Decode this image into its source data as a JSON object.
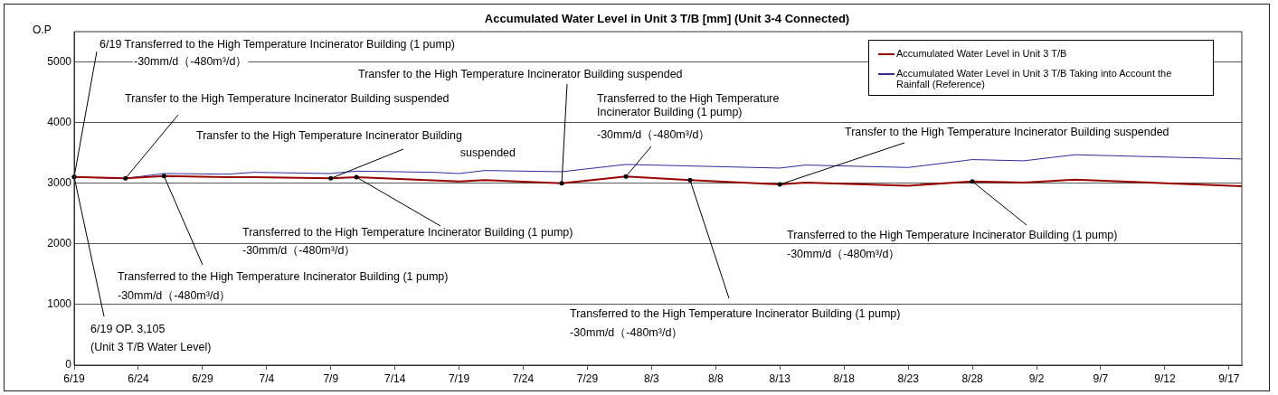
{
  "chart_data": {
    "type": "line",
    "title": "Accumulated Water Level in Unit 3 T/B [mm] (Unit 3-4 Connected)",
    "ylabel": "O.P",
    "xlim": [
      "--06-19",
      "--09-18"
    ],
    "xticks": [
      {
        "value": "--06-19",
        "label": "6/19"
      },
      {
        "value": "--06-24",
        "label": "6/24"
      },
      {
        "value": "--06-29",
        "label": "6/29"
      },
      {
        "value": "--07-04",
        "label": "7/4"
      },
      {
        "value": "--07-09",
        "label": "7/9"
      },
      {
        "value": "--07-14",
        "label": "7/14"
      },
      {
        "value": "--07-19",
        "label": "7/19"
      },
      {
        "value": "--07-24",
        "label": "7/24"
      },
      {
        "value": "--07-29",
        "label": "7/29"
      },
      {
        "value": "--08-03",
        "label": "8/3"
      },
      {
        "value": "--08-08",
        "label": "8/8"
      },
      {
        "value": "--08-13",
        "label": "8/13"
      },
      {
        "value": "--08-18",
        "label": "8/18"
      },
      {
        "value": "--08-23",
        "label": "8/23"
      },
      {
        "value": "--08-28",
        "label": "8/28"
      },
      {
        "value": "--09-02",
        "label": "9/2"
      },
      {
        "value": "--09-07",
        "label": "9/7"
      },
      {
        "value": "--09-12",
        "label": "9/12"
      },
      {
        "value": "--09-17",
        "label": "9/17"
      }
    ],
    "ylim": [
      0,
      5500
    ],
    "yticks": [
      0,
      1000,
      2000,
      3000,
      4000,
      5000
    ],
    "grid": "y",
    "legend": "top right",
    "marker": "none",
    "series": [
      {
        "name": "Accumulated Water Level in Unit 3 T/B",
        "color": "#990000",
        "x": [
          "--06-19",
          "--06-23",
          "--06-26",
          "--07-01",
          "--07-03",
          "--07-09",
          "--07-11",
          "--07-19",
          "--07-21",
          "--07-27",
          "--08-01",
          "--08-06",
          "--08-13",
          "--08-15",
          "--08-23",
          "--08-28",
          "--09-01",
          "--09-05",
          "--09-18"
        ],
        "values": [
          3105,
          3080,
          3120,
          3100,
          3100,
          3080,
          3100,
          3030,
          3050,
          3000,
          3110,
          3050,
          2980,
          3010,
          2960,
          3030,
          3010,
          3060,
          2950
        ]
      },
      {
        "name": "Accumulated Water Level in Unit 3 T/B Taking into Account the Rainfall (Reference)",
        "color": "#2b2b99",
        "x": [
          "--06-19",
          "--06-23",
          "--06-26",
          "--07-01",
          "--07-03",
          "--07-09",
          "--07-11",
          "--07-17",
          "--07-19",
          "--07-21",
          "--07-27",
          "--08-01",
          "--08-13",
          "--08-15",
          "--08-19",
          "--08-23",
          "--08-28",
          "--09-01",
          "--09-05",
          "--09-18"
        ],
        "values": [
          3100,
          3080,
          3160,
          3150,
          3180,
          3160,
          3200,
          3180,
          3160,
          3210,
          3190,
          3310,
          3250,
          3300,
          3280,
          3260,
          3390,
          3370,
          3470,
          3400
        ]
      }
    ],
    "annotations": [
      {
        "text": "6/19 Transferred to the High Temperature Incinerator Building (1 pump)\n-30mm/d（-480m³/d）",
        "x": "--06-19",
        "y": 3105
      },
      {
        "text": "6/19 OP. 3,105\n(Unit 3 T/B Water Level)",
        "x": "--06-19",
        "y": 3105
      },
      {
        "text": "Transfer to the High Temperature Incinerator Building suspended",
        "x": "--06-23",
        "y": 3080
      },
      {
        "text": "Transferred to the High Temperature Incinerator Building (1 pump)\n-30mm/d（-480m³/d）",
        "x": "--06-26",
        "y": 3120
      },
      {
        "text": "Transfer to the High Temperature Incinerator Building\nsuspended",
        "x": "--07-09",
        "y": 3080
      },
      {
        "text": "Transferred to the High Temperature Incinerator Building (1 pump)\n-30mm/d（-480m³/d）",
        "x": "--07-11",
        "y": 3100
      },
      {
        "text": "Transfer to the High Temperature Incinerator Building suspended",
        "x": "--07-27",
        "y": 3000
      },
      {
        "text": "Transferred to the High Temperature\nIncinerator Building (1 pump)\n-30mm/d（-480m³/d）",
        "x": "--08-01",
        "y": 3110
      },
      {
        "text": "Transferred to the High Temperature Incinerator Building (1 pump)\n-30mm/d（-480m³/d）",
        "x": "--08-06",
        "y": 3050
      },
      {
        "text": "Transfer to the High Temperature Incinerator Building suspended",
        "x": "--08-13",
        "y": 2980
      },
      {
        "text": "Transferred to the High Temperature Incinerator Building (1 pump)\n-30mm/d（-480m³/d）",
        "x": "--08-28",
        "y": 3030
      }
    ]
  }
}
